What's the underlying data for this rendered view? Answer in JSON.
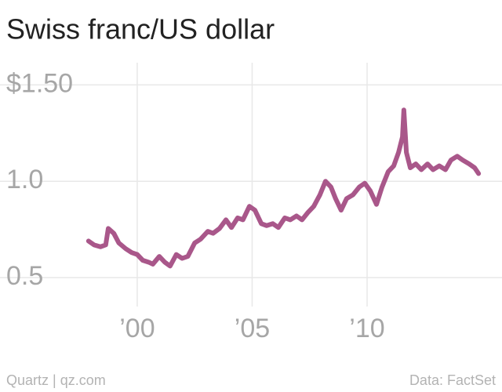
{
  "chart_data": {
    "type": "line",
    "title": "Swiss franc/US dollar",
    "source_left": "Quartz | qz.com",
    "source_right": "Data: FactSet",
    "x": [
      1997.88,
      1998.12,
      1998.4,
      1998.63,
      1998.74,
      1998.98,
      1999.2,
      1999.5,
      1999.76,
      2000.0,
      2000.24,
      2000.5,
      2000.68,
      2000.96,
      2001.2,
      2001.43,
      2001.7,
      2001.95,
      2002.2,
      2002.5,
      2002.76,
      2003.07,
      2003.3,
      2003.58,
      2003.86,
      2004.1,
      2004.37,
      2004.6,
      2004.88,
      2005.12,
      2005.4,
      2005.63,
      2005.9,
      2006.14,
      2006.42,
      2006.66,
      2006.93,
      2007.17,
      2007.44,
      2007.68,
      2007.95,
      2008.19,
      2008.43,
      2008.63,
      2008.87,
      2009.11,
      2009.39,
      2009.66,
      2009.9,
      2010.14,
      2010.41,
      2010.65,
      2010.92,
      2011.16,
      2011.37,
      2011.54,
      2011.6,
      2011.71,
      2011.88,
      2012.12,
      2012.36,
      2012.63,
      2012.87,
      2013.14,
      2013.41,
      2013.65,
      2013.92,
      2014.16,
      2014.44,
      2014.68,
      2014.85
    ],
    "series": [
      {
        "name": "Swiss franc/US dollar",
        "color": "#a9578a",
        "values": [
          0.69,
          0.67,
          0.66,
          0.67,
          0.755,
          0.73,
          0.68,
          0.65,
          0.63,
          0.62,
          0.59,
          0.58,
          0.57,
          0.61,
          0.58,
          0.56,
          0.62,
          0.6,
          0.61,
          0.68,
          0.7,
          0.74,
          0.73,
          0.755,
          0.8,
          0.76,
          0.81,
          0.8,
          0.87,
          0.85,
          0.78,
          0.77,
          0.78,
          0.76,
          0.81,
          0.8,
          0.82,
          0.8,
          0.84,
          0.87,
          0.93,
          1.0,
          0.97,
          0.91,
          0.85,
          0.91,
          0.93,
          0.97,
          0.99,
          0.95,
          0.88,
          0.97,
          1.05,
          1.08,
          1.15,
          1.23,
          1.37,
          1.15,
          1.07,
          1.09,
          1.06,
          1.09,
          1.06,
          1.08,
          1.06,
          1.11,
          1.13,
          1.11,
          1.09,
          1.07,
          1.04
        ]
      }
    ],
    "xlim": [
      1994.03,
      2015.87
    ],
    "xticks": [
      {
        "value": 2000,
        "label": "’00"
      },
      {
        "value": 2005,
        "label": "’05"
      },
      {
        "value": 2010,
        "label": "’10"
      }
    ],
    "ylim": [
      0.35,
      1.55
    ],
    "yticks": [
      {
        "value": 0.5,
        "label": "0.5"
      },
      {
        "value": 1,
        "label": "1.0"
      },
      {
        "value": 1.5,
        "label": "$1.50"
      }
    ],
    "grid": true
  }
}
